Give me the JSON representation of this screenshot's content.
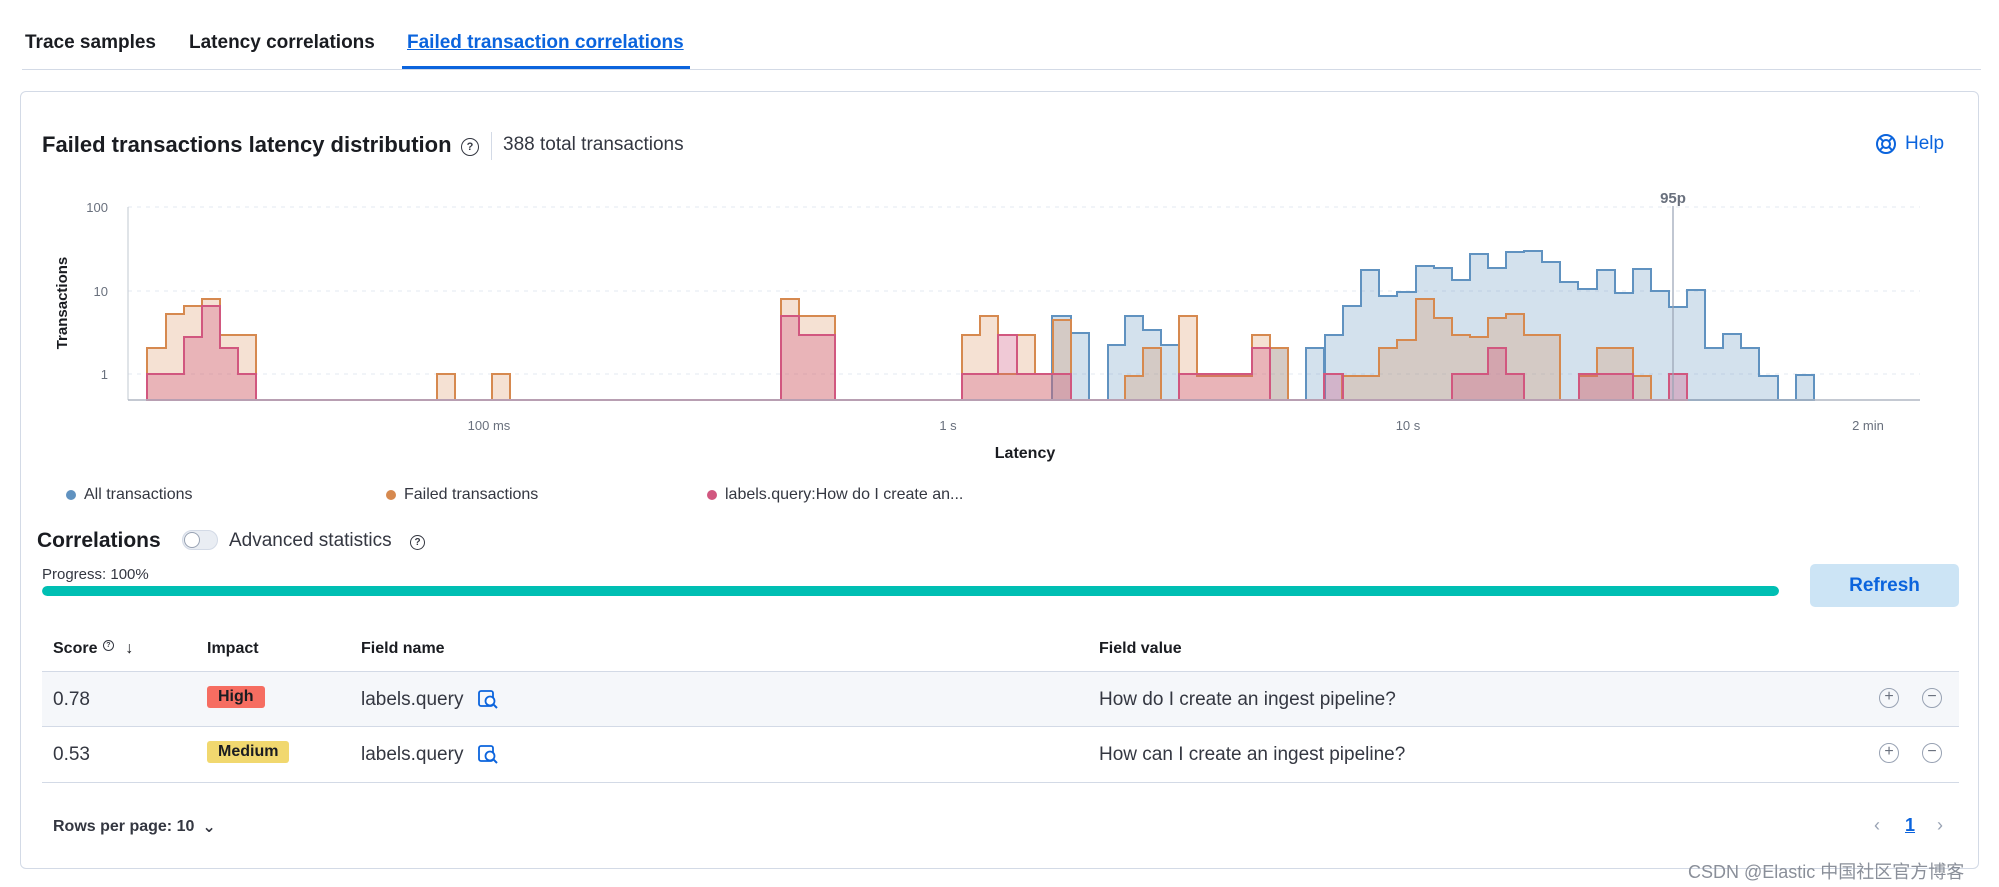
{
  "tabs": [
    {
      "label": "Trace samples",
      "active": false
    },
    {
      "label": "Latency correlations",
      "active": false
    },
    {
      "label": "Failed transaction correlations",
      "active": true
    }
  ],
  "panel": {
    "title": "Failed transactions latency distribution",
    "total": "388 total transactions",
    "help_label": "Help"
  },
  "chart_data": {
    "type": "area",
    "title": "Failed transactions latency distribution",
    "xlabel": "Latency",
    "ylabel": "Transactions",
    "yscale": "log",
    "ylim": [
      0.5,
      100
    ],
    "yticks": [
      "100",
      "10",
      "1"
    ],
    "xticks": [
      "100 ms",
      "1 s",
      "10 s",
      "2 min"
    ],
    "marker": {
      "label": "95p"
    },
    "grid": true,
    "series": [
      {
        "name": "All transactions",
        "color": "#6092c0"
      },
      {
        "name": "Failed transactions",
        "color": "#d6894f"
      },
      {
        "name": "labels.query:How do I create an...",
        "color": "#d1577f"
      }
    ]
  },
  "correlations": {
    "title": "Correlations",
    "advanced_label": "Advanced statistics",
    "advanced_on": false,
    "progress_label": "Progress: 100%",
    "progress": 1.0,
    "refresh_label": "Refresh",
    "columns": {
      "score": "Score",
      "impact": "Impact",
      "field_name": "Field name",
      "field_value": "Field value"
    },
    "rows": [
      {
        "score": "0.78",
        "impact": "High",
        "field_name": "labels.query",
        "field_value": "How do I create an ingest pipeline?"
      },
      {
        "score": "0.53",
        "impact": "Medium",
        "field_name": "labels.query",
        "field_value": "How can I create an ingest pipeline?"
      }
    ],
    "rows_per_page": "Rows per page: 10",
    "page": "1"
  },
  "watermark": "CSDN @Elastic 中国社区官方博客"
}
